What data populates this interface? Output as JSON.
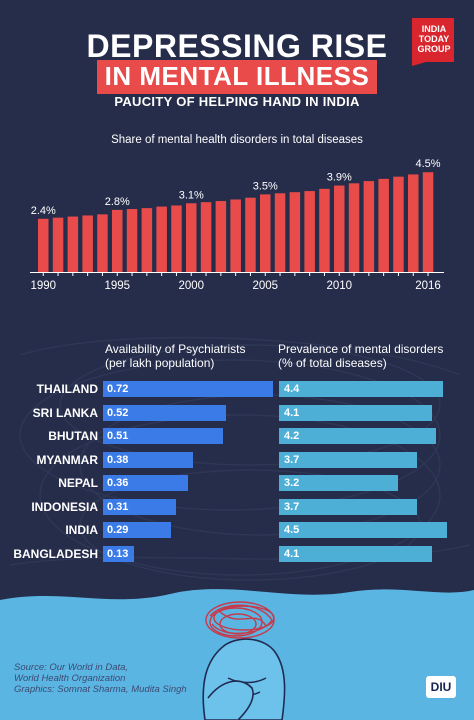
{
  "logo": {
    "lines": [
      "INDIA",
      "TODAY",
      "GROUP"
    ],
    "bg_color": "#d9252d"
  },
  "title": {
    "line1": "DEPRESSING RISE",
    "line2": "IN MENTAL ILLNESS",
    "line2_bg": "#e94b4b"
  },
  "subtitle": "PAUCITY OF HELPING HAND IN INDIA",
  "chart_data": [
    {
      "type": "bar",
      "title": "Share of mental health disorders in total diseases",
      "categories": [
        "1990",
        "1991",
        "1992",
        "1993",
        "1994",
        "1995",
        "1996",
        "1997",
        "1998",
        "1999",
        "2000",
        "2001",
        "2002",
        "2003",
        "2004",
        "2005",
        "2006",
        "2007",
        "2008",
        "2009",
        "2010",
        "2011",
        "2012",
        "2013",
        "2014",
        "2015",
        "2016"
      ],
      "values": [
        2.4,
        2.45,
        2.5,
        2.55,
        2.6,
        2.8,
        2.84,
        2.88,
        2.95,
        3.0,
        3.1,
        3.15,
        3.2,
        3.27,
        3.35,
        3.5,
        3.55,
        3.6,
        3.65,
        3.75,
        3.9,
        4.0,
        4.1,
        4.2,
        4.3,
        4.4,
        4.5
      ],
      "data_labels": [
        {
          "category": "1990",
          "text": "2.4%"
        },
        {
          "category": "1995",
          "text": "2.8%"
        },
        {
          "category": "2000",
          "text": "3.1%"
        },
        {
          "category": "2005",
          "text": "3.5%"
        },
        {
          "category": "2010",
          "text": "3.9%"
        },
        {
          "category": "2016",
          "text": "4.5%"
        }
      ],
      "x_tick_labels": [
        "1990",
        "1995",
        "2000",
        "2005",
        "2010",
        "2016"
      ],
      "bar_color": "#e94b4b",
      "ylim": [
        0,
        4.6
      ]
    },
    {
      "type": "bar",
      "orientation": "horizontal",
      "title": "Availability of Psychiatrists (per lakh population)",
      "categories": [
        "THAILAND",
        "SRI LANKA",
        "BHUTAN",
        "MYANMAR",
        "NEPAL",
        "INDONESIA",
        "INDIA",
        "BANGLADESH"
      ],
      "values": [
        0.72,
        0.52,
        0.51,
        0.38,
        0.36,
        0.31,
        0.29,
        0.13
      ],
      "value_labels": [
        "0.72",
        "0.52",
        "0.51",
        "0.38",
        "0.36",
        "0.31",
        "0.29",
        "0.13"
      ],
      "bar_color": "#3b7be8",
      "xlim": [
        0,
        0.72
      ]
    },
    {
      "type": "bar",
      "orientation": "horizontal",
      "title": "Prevalence of mental disorders (% of total diseases)",
      "categories": [
        "THAILAND",
        "SRI LANKA",
        "BHUTAN",
        "MYANMAR",
        "NEPAL",
        "INDONESIA",
        "INDIA",
        "BANGLADESH"
      ],
      "values": [
        4.4,
        4.1,
        4.2,
        3.7,
        3.2,
        3.7,
        4.5,
        4.1
      ],
      "value_labels": [
        "4.4",
        "4.1",
        "4.2",
        "3.7",
        "3.2",
        "3.7",
        "4.5",
        "4.1"
      ],
      "bar_color": "#4dafd6",
      "xlim": [
        0,
        4.5
      ]
    }
  ],
  "headers": {
    "left_line1": "Availability of Psychiatrists",
    "left_line2": "(per lakh population)",
    "right_line1": "Prevalence of mental disorders",
    "right_line2": "(% of total diseases)"
  },
  "source": {
    "line1": "Source: Our World in Data,",
    "line2": "World Health Organization",
    "line3": "Graphics: Somnat Sharma, Mudita Singh"
  },
  "brand": {
    "diu": "DIU"
  },
  "colors": {
    "background": "#262d4a",
    "accent_red": "#e94b4b",
    "bottom_blue": "#5bb5e3"
  }
}
